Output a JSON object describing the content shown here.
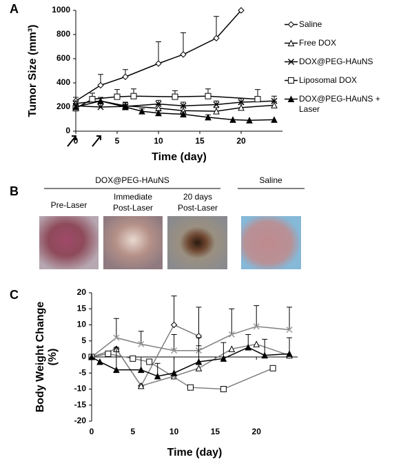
{
  "panel_labels": [
    "A",
    "B",
    "C"
  ],
  "photos": {
    "group_title": "DOX@PEG-HAuNS",
    "control_title": "Saline",
    "captions": [
      [
        "Pre-Laser"
      ],
      [
        "Immediate",
        "Post-Laser"
      ],
      [
        "20 days",
        "Post-Laser"
      ]
    ]
  },
  "chart_data": [
    {
      "type": "line",
      "xlabel": "Time (day)",
      "ylabel": "Tumor Size (mm³)",
      "xlim": [
        0,
        25
      ],
      "ylim": [
        0,
        1000
      ],
      "xticks": [
        0,
        5,
        10,
        15,
        20
      ],
      "yticks": [
        0,
        200,
        400,
        600,
        800,
        1000
      ],
      "legend": "right",
      "series": [
        {
          "name": "Saline",
          "marker": "diamond",
          "color": "#000000",
          "x": [
            0,
            3,
            6,
            10,
            13,
            17,
            20
          ],
          "values": [
            250,
            380,
            450,
            560,
            635,
            770,
            1000
          ],
          "errors": [
            30,
            90,
            60,
            180,
            180,
            180,
            null
          ]
        },
        {
          "name": "Free DOX",
          "marker": "triangle",
          "color": "#000000",
          "x": [
            0,
            3,
            6,
            10,
            13,
            17,
            20,
            24
          ],
          "values": [
            230,
            250,
            210,
            190,
            170,
            165,
            195,
            215
          ],
          "errors": [
            20,
            30,
            30,
            30,
            30,
            30,
            30,
            30
          ]
        },
        {
          "name": "DOX@PEG-HAuNS",
          "marker": "x",
          "color": "#000000",
          "x": [
            0,
            3,
            6,
            10,
            13,
            17,
            20,
            24
          ],
          "values": [
            210,
            200,
            205,
            225,
            210,
            220,
            240,
            250
          ],
          "errors": [
            20,
            30,
            30,
            30,
            30,
            30,
            30,
            40
          ]
        },
        {
          "name": "Liposomal DOX",
          "marker": "square",
          "color": "#000000",
          "x": [
            0,
            2,
            5,
            7,
            12,
            16,
            22
          ],
          "values": [
            190,
            265,
            285,
            290,
            285,
            290,
            265
          ],
          "errors": [
            40,
            50,
            60,
            60,
            50,
            60,
            80
          ]
        },
        {
          "name": "DOX@PEG-HAuNS + Laser",
          "marker": "triangle-filled",
          "color": "#000000",
          "x": [
            0,
            3,
            6,
            8,
            10,
            13,
            16,
            19,
            21,
            24
          ],
          "values": [
            200,
            250,
            200,
            165,
            150,
            140,
            115,
            95,
            90,
            95
          ],
          "errors": [
            20,
            30,
            20,
            20,
            20,
            20,
            20,
            null,
            null,
            null
          ]
        }
      ]
    },
    {
      "type": "line",
      "xlabel": "Time (day)",
      "ylabel": [
        "Body Weight Change",
        "(%)"
      ],
      "xlim": [
        0,
        25
      ],
      "ylim": [
        -20,
        20
      ],
      "xticks": [
        0,
        5,
        10,
        15,
        20
      ],
      "yticks": [
        -20,
        -15,
        -10,
        -5,
        0,
        5,
        10,
        15,
        20
      ],
      "series": [
        {
          "marker": "diamond",
          "color": "#808080",
          "x": [
            0,
            3,
            6,
            10,
            13
          ],
          "values": [
            0,
            2.5,
            -9,
            10,
            6.5
          ],
          "errors": [
            null,
            null,
            null,
            9,
            9
          ]
        },
        {
          "marker": "x",
          "color": "#808080",
          "x": [
            0,
            3,
            6,
            10,
            13,
            17,
            20,
            24
          ],
          "values": [
            0,
            6,
            4,
            2,
            2,
            7,
            9.5,
            8.5
          ],
          "errors": [
            null,
            6,
            4,
            5,
            4,
            8,
            6.5,
            7
          ]
        },
        {
          "marker": "triangle",
          "color": "#808080",
          "x": [
            0,
            3,
            6,
            10,
            13,
            17,
            20,
            24
          ],
          "values": [
            0,
            2.5,
            -9,
            -6,
            -3.5,
            2.5,
            4,
            0.5
          ],
          "errors": [
            null,
            null,
            null,
            null,
            null,
            null,
            null,
            null
          ]
        },
        {
          "marker": "square",
          "color": "#808080",
          "x": [
            0,
            2,
            5,
            7,
            12,
            16,
            22
          ],
          "values": [
            0,
            1,
            -0.5,
            -1.5,
            -9.5,
            -10,
            -3.5
          ],
          "errors": [
            null,
            null,
            null,
            null,
            null,
            null,
            null
          ]
        },
        {
          "marker": "triangle-filled",
          "color": "#000000",
          "x": [
            0,
            1,
            3,
            6,
            8,
            10,
            13,
            16,
            19,
            21,
            24
          ],
          "values": [
            0,
            -1.5,
            -4,
            -4,
            -6,
            -5,
            -1.5,
            -0.5,
            3,
            0.5,
            1
          ],
          "errors": [
            null,
            null,
            7,
            4,
            4,
            5,
            5,
            5,
            4,
            5,
            5
          ]
        }
      ]
    }
  ]
}
